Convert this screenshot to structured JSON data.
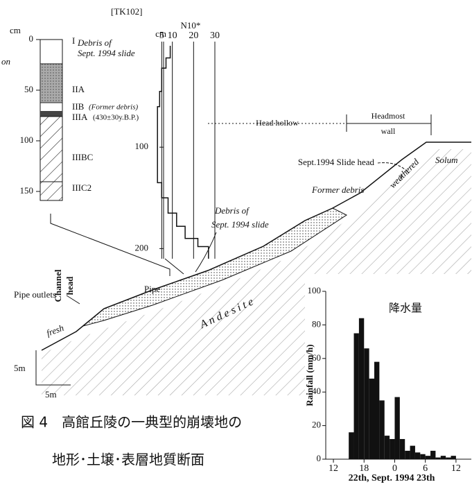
{
  "header": {
    "label": "[TK102]"
  },
  "profile": {
    "unit": "cm",
    "cut_label": "on",
    "ticks": [
      0,
      50,
      100,
      150
    ],
    "layers": [
      {
        "name": "I",
        "desc": [
          "Debris of",
          "Sept. 1994 slide"
        ]
      },
      {
        "name": "IIA"
      },
      {
        "name": "IIB",
        "desc": [
          "(Former debris)"
        ]
      },
      {
        "name": "IIIA",
        "desc": [
          "(430±30y.B.P.)"
        ]
      },
      {
        "name": "IIIBC"
      },
      {
        "name": "IIIC2"
      }
    ]
  },
  "section": {
    "head_hollow": "Head hollow",
    "headmost_wall": [
      "Headmost",
      "wall"
    ],
    "slide_head": "Sept.1994 Slide head",
    "solum": "Solum",
    "question": "?",
    "weathered": "weathered",
    "former_debris": "Former debris",
    "debris": [
      "Debris of",
      "Sept. 1994 slide"
    ],
    "andesite": "A n d e s i t e",
    "channel_head": [
      "Channel",
      "head"
    ],
    "pipe": "Pipe",
    "pipe_outlets": "Pipe outlets",
    "fresh": "fresh",
    "scale_v": "5m",
    "scale_h": "5m"
  },
  "caption": {
    "line1": "図 4　高館丘陵の一典型的崩壊地の",
    "line2": "地形･土壌･表層地質断面"
  },
  "chart_data": [
    {
      "type": "bar",
      "title": "降水量",
      "y_label": "Rainfall (mm/h)",
      "x_label": "22th, Sept. 1994 23th",
      "color": "#111111",
      "x": [
        15,
        16,
        17,
        18,
        19,
        20,
        21,
        22,
        23,
        24,
        25,
        26,
        27,
        28,
        29,
        30,
        31,
        32,
        33,
        34,
        35
      ],
      "values": [
        16,
        75,
        84,
        66,
        48,
        58,
        35,
        14,
        12,
        37,
        12,
        5,
        8,
        4,
        3,
        2,
        5,
        1,
        2,
        1,
        2
      ],
      "xlim": [
        10.5,
        39
      ],
      "ylim": [
        0,
        100
      ],
      "xticks": [
        12,
        18,
        {
          "value": 24,
          "label": "0"
        },
        {
          "value": 30,
          "label": "6"
        },
        {
          "value": 36,
          "label": "12"
        }
      ],
      "yticks": [
        0,
        20,
        40,
        60,
        80,
        100
      ]
    },
    {
      "type": "line",
      "title": "N10*",
      "y_label": "cm",
      "color": "#111111",
      "x": [
        9,
        9,
        7,
        7,
        5,
        5,
        4,
        4,
        3,
        3,
        5,
        5,
        8,
        8,
        12,
        12,
        16,
        16,
        22,
        22,
        27,
        27
      ],
      "values": [
        0,
        12,
        12,
        22,
        22,
        45,
        45,
        60,
        60,
        135,
        135,
        150,
        150,
        165,
        165,
        178,
        178,
        190,
        190,
        198,
        198,
        210
      ],
      "xlim": [
        0,
        30
      ],
      "ylim": [
        0,
        210
      ],
      "xticks": [
        5,
        10,
        20,
        30
      ],
      "yticks": [
        100,
        200
      ]
    }
  ]
}
